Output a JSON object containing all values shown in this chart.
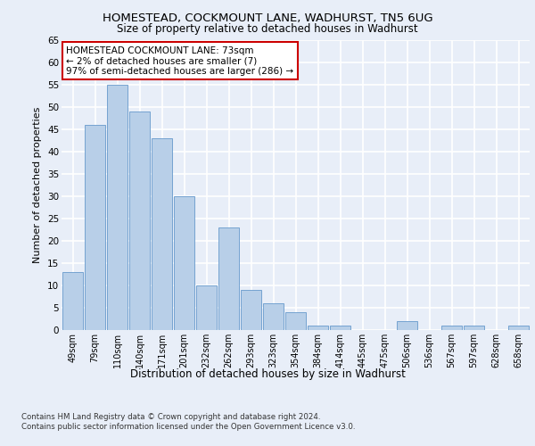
{
  "title_line1": "HOMESTEAD, COCKMOUNT LANE, WADHURST, TN5 6UG",
  "title_line2": "Size of property relative to detached houses in Wadhurst",
  "xlabel": "Distribution of detached houses by size in Wadhurst",
  "ylabel": "Number of detached properties",
  "categories": [
    "49sqm",
    "79sqm",
    "110sqm",
    "140sqm",
    "171sqm",
    "201sqm",
    "232sqm",
    "262sqm",
    "293sqm",
    "323sqm",
    "354sqm",
    "384sqm",
    "414sqm",
    "445sqm",
    "475sqm",
    "506sqm",
    "536sqm",
    "567sqm",
    "597sqm",
    "628sqm",
    "658sqm"
  ],
  "values": [
    13,
    46,
    55,
    49,
    43,
    30,
    10,
    23,
    9,
    6,
    4,
    1,
    1,
    0,
    0,
    2,
    0,
    1,
    1,
    0,
    1
  ],
  "bar_color": "#b8cfe8",
  "bar_edge_color": "#6699cc",
  "annotation_text": "HOMESTEAD COCKMOUNT LANE: 73sqm\n← 2% of detached houses are smaller (7)\n97% of semi-detached houses are larger (286) →",
  "annotation_box_color": "#ffffff",
  "annotation_box_edge": "#cc0000",
  "ylim": [
    0,
    65
  ],
  "yticks": [
    0,
    5,
    10,
    15,
    20,
    25,
    30,
    35,
    40,
    45,
    50,
    55,
    60,
    65
  ],
  "footer_line1": "Contains HM Land Registry data © Crown copyright and database right 2024.",
  "footer_line2": "Contains public sector information licensed under the Open Government Licence v3.0.",
  "background_color": "#e8eef8",
  "grid_color": "#ffffff"
}
